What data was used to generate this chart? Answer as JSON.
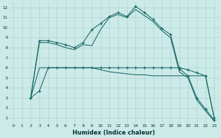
{
  "xlabel": "Humidex (Indice chaleur)",
  "background_color": "#cceae7",
  "grid_color": "#aad4d0",
  "line_color": "#1a6b6b",
  "xlim": [
    -0.5,
    23.5
  ],
  "ylim": [
    0.5,
    12.5
  ],
  "xticks": [
    0,
    1,
    2,
    3,
    4,
    5,
    6,
    7,
    8,
    9,
    10,
    11,
    12,
    13,
    14,
    15,
    16,
    17,
    18,
    19,
    20,
    21,
    22,
    23
  ],
  "yticks": [
    1,
    2,
    3,
    4,
    5,
    6,
    7,
    8,
    9,
    10,
    11,
    12
  ],
  "series_x": [
    [
      2,
      3,
      4,
      5,
      6,
      7,
      8,
      9,
      10,
      11,
      12,
      13,
      14,
      15,
      16,
      17,
      18,
      19,
      20,
      21,
      22,
      23
    ],
    [
      2,
      3,
      4,
      5,
      6,
      7,
      8,
      9,
      10,
      11,
      12,
      13,
      14,
      15,
      16,
      17,
      18,
      19,
      20,
      21,
      22,
      23
    ],
    [
      2,
      3,
      4,
      5,
      6,
      7,
      8,
      9,
      10,
      11,
      12,
      13,
      14,
      15,
      16,
      17,
      18,
      19,
      20,
      21,
      22,
      23
    ],
    [
      2,
      3,
      4,
      5,
      6,
      7,
      8,
      9,
      10,
      11,
      12,
      13,
      14,
      15,
      16,
      17,
      18,
      19,
      20,
      21,
      22,
      23
    ]
  ],
  "series_y": [
    [
      3.0,
      3.7,
      6.0,
      6.0,
      6.0,
      6.0,
      6.0,
      6.0,
      6.0,
      6.0,
      6.0,
      6.0,
      6.0,
      6.0,
      6.0,
      6.0,
      6.0,
      6.0,
      5.8,
      5.5,
      5.2,
      1.0
    ],
    [
      3.0,
      8.7,
      8.7,
      8.5,
      8.3,
      8.0,
      8.5,
      9.8,
      10.4,
      11.1,
      11.5,
      11.1,
      12.1,
      11.5,
      10.8,
      9.9,
      9.3,
      5.9,
      5.2,
      3.0,
      1.9,
      0.8
    ],
    [
      3.0,
      8.5,
      8.5,
      8.3,
      8.0,
      7.8,
      8.3,
      8.2,
      9.8,
      11.0,
      11.3,
      11.0,
      11.8,
      11.2,
      10.6,
      9.7,
      9.0,
      5.6,
      5.0,
      2.8,
      1.7,
      0.7
    ],
    [
      3.0,
      6.0,
      6.0,
      6.0,
      6.0,
      6.0,
      6.0,
      6.0,
      5.8,
      5.6,
      5.5,
      5.4,
      5.3,
      5.3,
      5.2,
      5.2,
      5.2,
      5.2,
      5.2,
      5.2,
      5.2,
      1.0
    ]
  ],
  "series_markers": [
    true,
    true,
    false,
    false
  ],
  "marker_style": "+",
  "marker_size": 3,
  "line_width": 0.8
}
